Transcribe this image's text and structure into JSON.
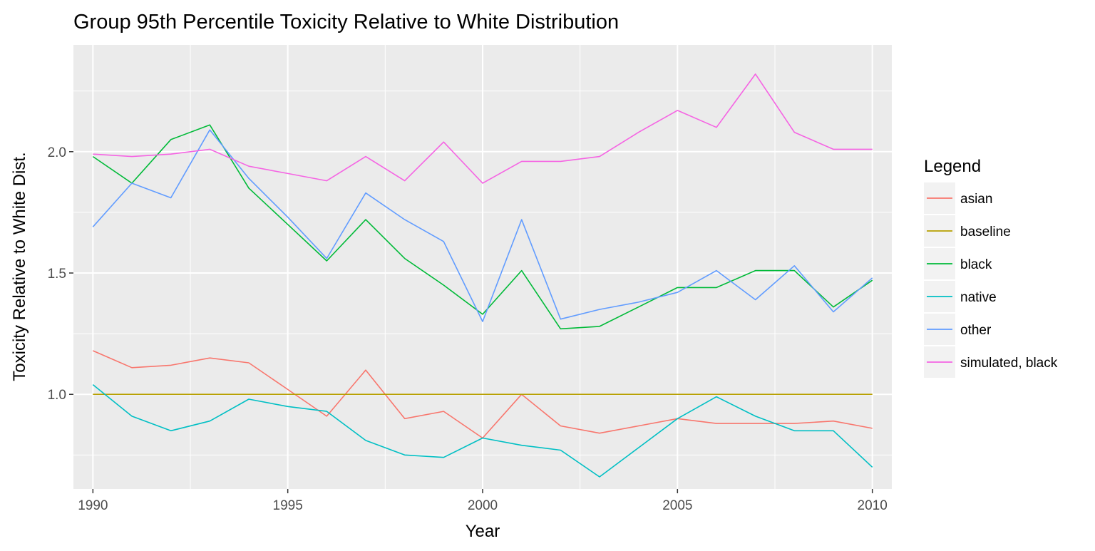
{
  "chart_data": {
    "type": "line",
    "title": "Group 95th Percentile Toxicity Relative to White Distribution",
    "xlabel": "Year",
    "ylabel": "Toxicity Relative to White Dist.",
    "x": [
      1990,
      1991,
      1992,
      1993,
      1994,
      1995,
      1996,
      1997,
      1998,
      1999,
      2000,
      2001,
      2002,
      2003,
      2004,
      2005,
      2006,
      2007,
      2008,
      2009,
      2010
    ],
    "xlim": [
      1989.5,
      2010.5
    ],
    "ylim": [
      0.61,
      2.44
    ],
    "x_ticks": [
      {
        "value": 1990,
        "label": "1990"
      },
      {
        "value": 1995,
        "label": "1995"
      },
      {
        "value": 2000,
        "label": "2000"
      },
      {
        "value": 2005,
        "label": "2005"
      },
      {
        "value": 2010,
        "label": "2010"
      }
    ],
    "y_ticks": [
      {
        "value": 1.0,
        "label": "1.0"
      },
      {
        "value": 1.5,
        "label": "1.5"
      },
      {
        "value": 2.0,
        "label": "2.0"
      }
    ],
    "grid": true,
    "background": "#ebebeb",
    "legend": {
      "title": "Legend",
      "position": "right"
    },
    "series": [
      {
        "name": "asian",
        "color": "#F8766D",
        "values": [
          1.18,
          1.11,
          1.12,
          1.15,
          1.13,
          1.02,
          0.91,
          1.1,
          0.9,
          0.93,
          0.82,
          1.0,
          0.87,
          0.84,
          0.87,
          0.9,
          0.88,
          0.88,
          0.88,
          0.89,
          0.86
        ]
      },
      {
        "name": "baseline",
        "color": "#B79F00",
        "values": [
          1.0,
          1.0,
          1.0,
          1.0,
          1.0,
          1.0,
          1.0,
          1.0,
          1.0,
          1.0,
          1.0,
          1.0,
          1.0,
          1.0,
          1.0,
          1.0,
          1.0,
          1.0,
          1.0,
          1.0,
          1.0
        ]
      },
      {
        "name": "black",
        "color": "#00BA38",
        "values": [
          1.98,
          1.87,
          2.05,
          2.11,
          1.85,
          1.7,
          1.55,
          1.72,
          1.56,
          1.45,
          1.33,
          1.51,
          1.27,
          1.28,
          1.36,
          1.44,
          1.44,
          1.51,
          1.51,
          1.36,
          1.47
        ]
      },
      {
        "name": "native",
        "color": "#00BFC4",
        "values": [
          1.04,
          0.91,
          0.85,
          0.89,
          0.98,
          0.95,
          0.93,
          0.81,
          0.75,
          0.74,
          0.82,
          0.79,
          0.77,
          0.66,
          0.78,
          0.9,
          0.99,
          0.91,
          0.85,
          0.85,
          0.7
        ]
      },
      {
        "name": "other",
        "color": "#619CFF",
        "values": [
          1.69,
          1.87,
          1.81,
          2.09,
          1.89,
          1.73,
          1.56,
          1.83,
          1.72,
          1.63,
          1.3,
          1.72,
          1.31,
          1.35,
          1.38,
          1.42,
          1.51,
          1.39,
          1.53,
          1.34,
          1.48
        ]
      },
      {
        "name": "simulated, black",
        "color": "#F564E3",
        "values": [
          1.99,
          1.98,
          1.99,
          2.01,
          1.94,
          1.91,
          1.88,
          1.98,
          1.88,
          2.04,
          1.87,
          1.96,
          1.96,
          1.98,
          2.08,
          2.17,
          2.1,
          2.32,
          2.08,
          2.01,
          2.01
        ]
      }
    ]
  }
}
